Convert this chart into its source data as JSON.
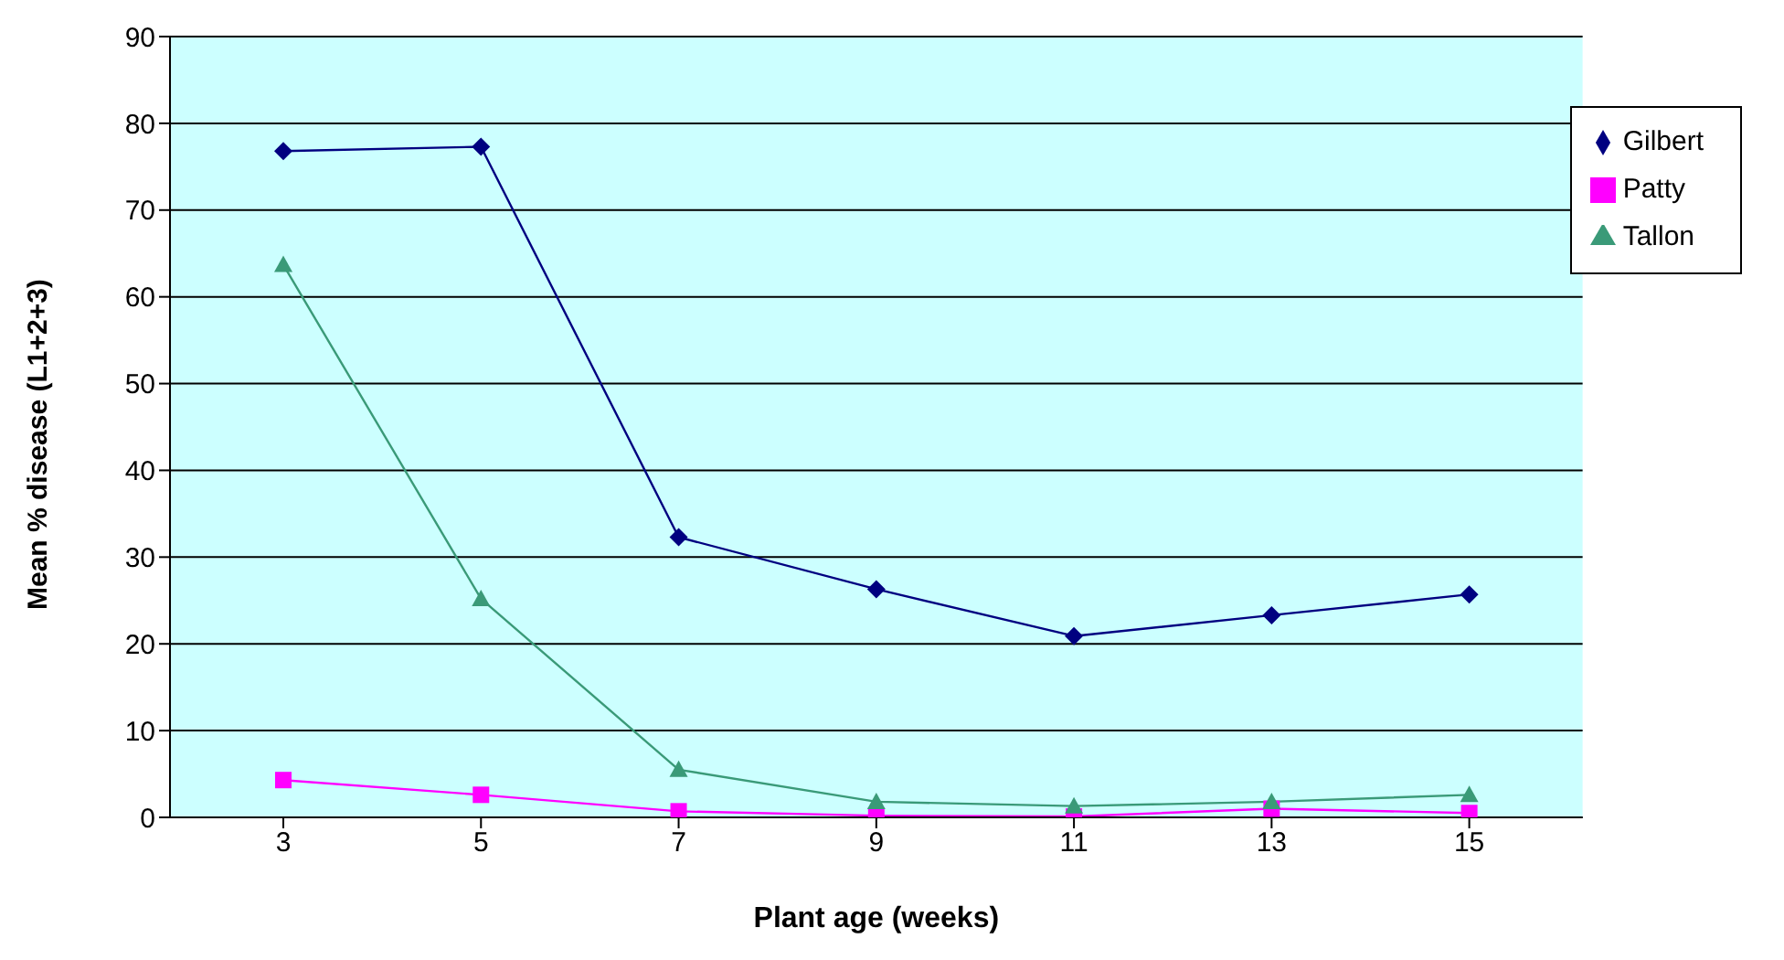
{
  "chart_data": {
    "type": "line",
    "xlabel": "Plant age (weeks)",
    "ylabel": "Mean % disease (L1+2+3)",
    "categories": [
      "3",
      "5",
      "7",
      "9",
      "11",
      "13",
      "15"
    ],
    "series": [
      {
        "name": "Gilbert",
        "color": "#000080",
        "marker": "diamond",
        "values": [
          76.8,
          77.3,
          32.3,
          26.3,
          20.9,
          23.3,
          25.7
        ]
      },
      {
        "name": "Patty",
        "color": "#ff00ff",
        "marker": "square",
        "values": [
          4.3,
          2.6,
          0.7,
          0.2,
          0.1,
          1,
          0.5
        ]
      },
      {
        "name": "Tallon",
        "color": "#3a9a78",
        "marker": "triangle",
        "values": [
          63.7,
          25.2,
          5.5,
          1.8,
          1.3,
          1.8,
          2.6
        ]
      }
    ],
    "ylim": [
      0,
      90
    ],
    "yticks": [
      0,
      10,
      20,
      30,
      40,
      50,
      60,
      70,
      80,
      90
    ],
    "grid": "y",
    "legend": "top right"
  }
}
